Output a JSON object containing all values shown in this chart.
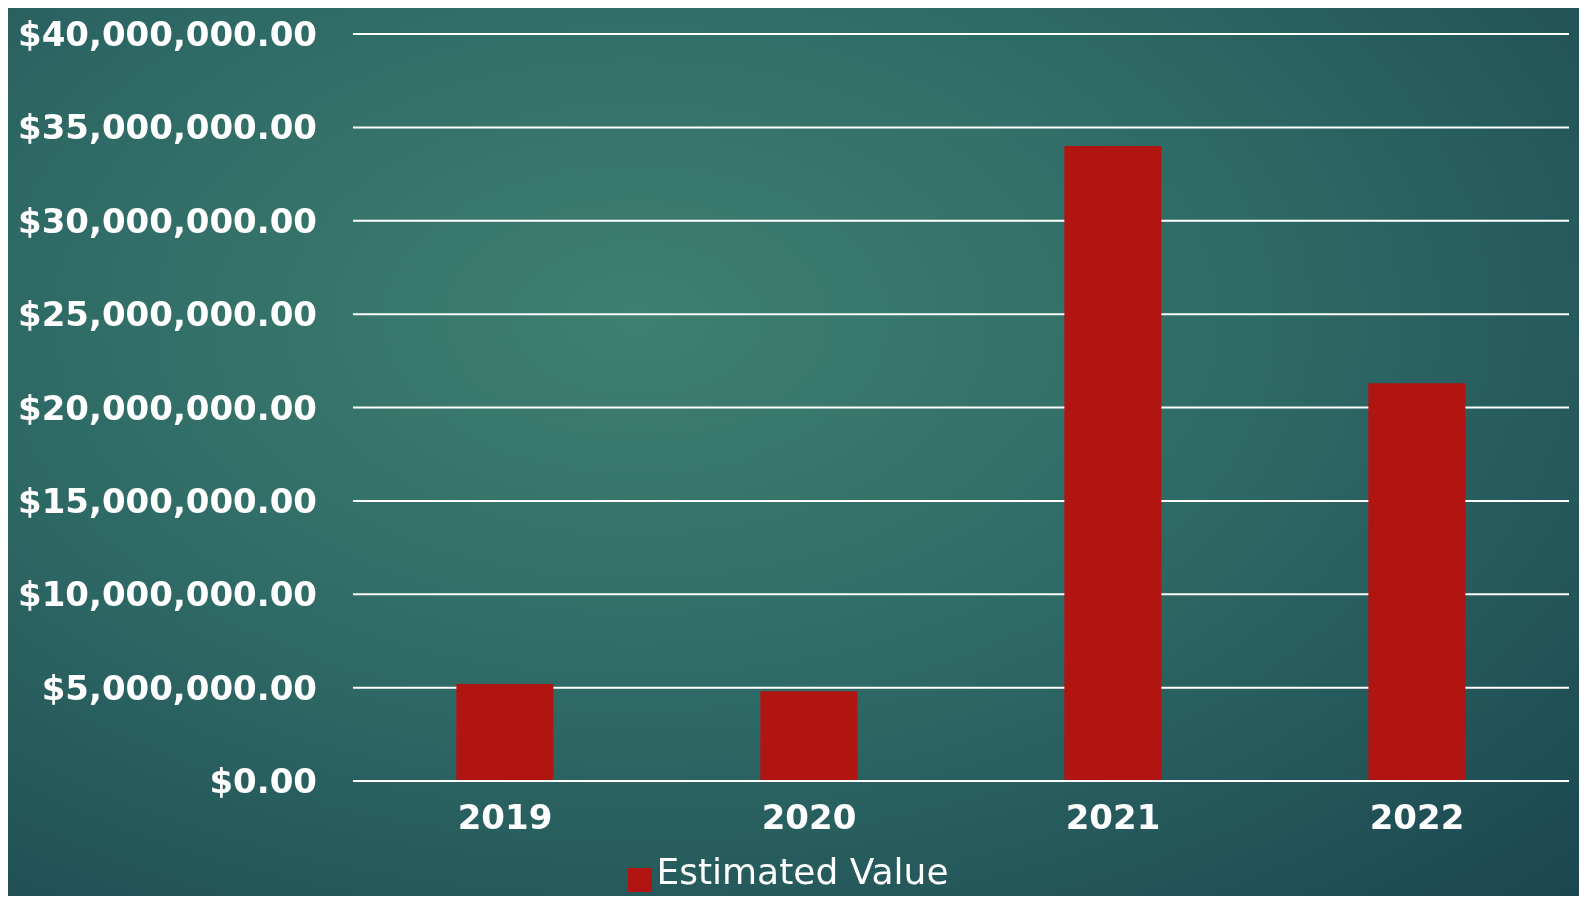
{
  "chart_data": {
    "type": "bar",
    "categories": [
      "2019",
      "2020",
      "2021",
      "2022"
    ],
    "series": [
      {
        "name": "Estimated Value",
        "color": "#b01512",
        "values": [
          5200000,
          4800000,
          34000000,
          21300000
        ]
      }
    ],
    "ylim": [
      0,
      40000000
    ],
    "yticks": [
      {
        "value": 0,
        "label": "$0.00"
      },
      {
        "value": 5000000,
        "label": "$5,000,000.00"
      },
      {
        "value": 10000000,
        "label": "$10,000,000.00"
      },
      {
        "value": 15000000,
        "label": "$15,000,000.00"
      },
      {
        "value": 20000000,
        "label": "$20,000,000.00"
      },
      {
        "value": 25000000,
        "label": "$25,000,000.00"
      },
      {
        "value": 30000000,
        "label": "$30,000,000.00"
      },
      {
        "value": 35000000,
        "label": "$35,000,000.00"
      },
      {
        "value": 40000000,
        "label": "$40,000,000.00"
      }
    ],
    "grid": "y",
    "legend": "bottom"
  }
}
